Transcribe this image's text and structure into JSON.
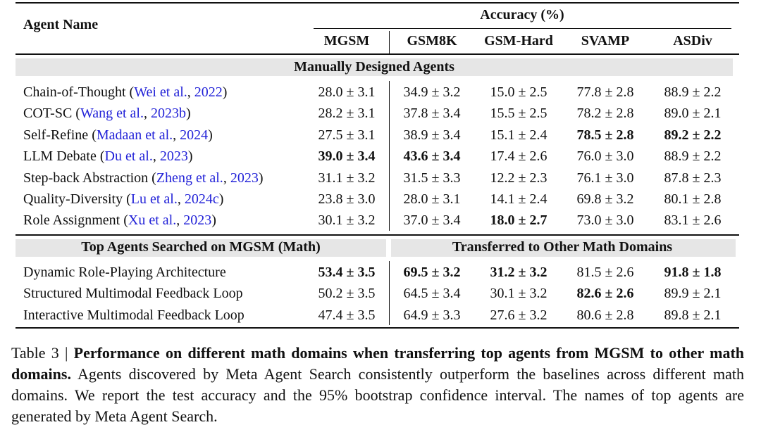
{
  "table": {
    "header": {
      "agent_name": "Agent Name",
      "group": "Accuracy (%)",
      "columns": [
        "MGSM",
        "GSM8K",
        "GSM-Hard",
        "SVAMP",
        "ASDiv"
      ]
    },
    "sections": [
      {
        "titles": [
          "Manually Designed Agents"
        ],
        "rows": [
          {
            "label": [
              "Chain-of-Thought (",
              "Wei et al.",
              ", ",
              "2022",
              ")"
            ],
            "cells": [
              "28.0 ± 3.1",
              "34.9 ± 3.2",
              "15.0 ± 2.5",
              "77.8 ± 2.8",
              "88.9 ± 2.2"
            ],
            "bold": []
          },
          {
            "label": [
              "COT-SC (",
              "Wang et al.",
              ", ",
              "2023b",
              ")"
            ],
            "cells": [
              "28.2 ± 3.1",
              "37.8 ± 3.4",
              "15.5 ± 2.5",
              "78.2 ± 2.8",
              "89.0 ± 2.1"
            ],
            "bold": []
          },
          {
            "label": [
              "Self-Refine (",
              "Madaan et al.",
              ", ",
              "2024",
              ")"
            ],
            "cells": [
              "27.5 ± 3.1",
              "38.9 ± 3.4",
              "15.1 ± 2.4",
              "78.5 ± 2.8",
              "89.2 ± 2.2"
            ],
            "bold": [
              3,
              4
            ]
          },
          {
            "label": [
              "LLM Debate (",
              "Du et al.",
              ", ",
              "2023",
              ")"
            ],
            "cells": [
              "39.0 ± 3.4",
              "43.6 ± 3.4",
              "17.4 ± 2.6",
              "76.0 ± 3.0",
              "88.9 ± 2.2"
            ],
            "bold": [
              0,
              1
            ]
          },
          {
            "label": [
              "Step-back Abstraction (",
              "Zheng et al.",
              ", ",
              "2023",
              ")"
            ],
            "cells": [
              "31.1 ± 3.2",
              "31.5 ± 3.3",
              "12.2 ± 2.3",
              "76.1 ± 3.0",
              "87.8 ± 2.3"
            ],
            "bold": []
          },
          {
            "label": [
              "Quality-Diversity (",
              "Lu et al.",
              ", ",
              "2024c",
              ")"
            ],
            "cells": [
              "23.8 ± 3.0",
              "28.0 ± 3.1",
              "14.1 ± 2.4",
              "69.8 ± 3.2",
              "80.1 ± 2.8"
            ],
            "bold": []
          },
          {
            "label": [
              "Role Assignment (",
              "Xu et al.",
              ", ",
              "2023",
              ")"
            ],
            "cells": [
              "30.1 ± 3.2",
              "37.0 ± 3.4",
              "18.0 ± 2.7",
              "73.0 ± 3.0",
              "83.1 ± 2.6"
            ],
            "bold": [
              2
            ]
          }
        ]
      },
      {
        "titles": [
          "Top Agents Searched on MGSM (Math)",
          "Transferred to Other Math Domains"
        ],
        "rows": [
          {
            "label": [
              "Dynamic Role-Playing Architecture"
            ],
            "cells": [
              "53.4 ± 3.5",
              "69.5 ± 3.2",
              "31.2 ± 3.2",
              "81.5 ± 2.6",
              "91.8 ± 1.8"
            ],
            "bold": [
              0,
              1,
              2,
              4
            ]
          },
          {
            "label": [
              "Structured Multimodal Feedback Loop"
            ],
            "cells": [
              "50.2 ± 3.5",
              "64.5 ± 3.4",
              "30.1 ± 3.2",
              "82.6 ± 2.6",
              "89.9 ± 2.1"
            ],
            "bold": [
              3
            ]
          },
          {
            "label": [
              "Interactive Multimodal Feedback Loop"
            ],
            "cells": [
              "47.4 ± 3.5",
              "64.9 ± 3.3",
              "27.6 ± 3.2",
              "80.6 ± 2.8",
              "89.8 ± 2.1"
            ],
            "bold": []
          }
        ]
      }
    ]
  },
  "caption": {
    "label": "Table 3 |",
    "title": "Performance on different math domains when transferring top agents from MGSM to other math domains.",
    "text": "Agents discovered by Meta Agent Search consistently outperform the baselines across different math domains. We report the test accuracy and the 95% bootstrap confidence interval. The names of top agents are generated by Meta Agent Search."
  }
}
